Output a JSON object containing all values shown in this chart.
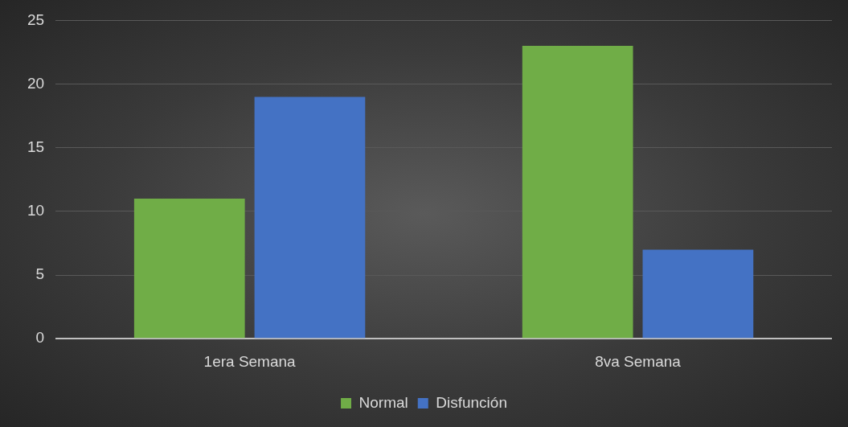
{
  "chart_data": {
    "type": "bar",
    "categories": [
      "1era Semana",
      "8va Semana"
    ],
    "series": [
      {
        "name": "Normal",
        "color": "#70ad47",
        "values": [
          11,
          23
        ]
      },
      {
        "name": "Disfunción",
        "color": "#4472c4",
        "values": [
          19,
          7
        ]
      }
    ],
    "ylim": [
      0,
      25
    ],
    "yticks": [
      0,
      5,
      10,
      15,
      20,
      25
    ],
    "grid": "y",
    "legend": "bottom"
  }
}
